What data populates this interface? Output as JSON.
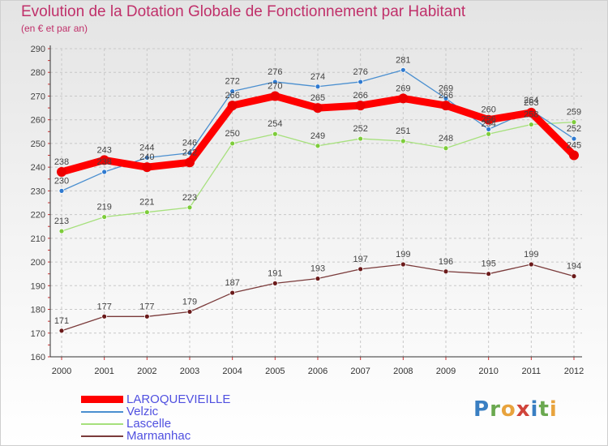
{
  "header": {
    "title": "Evolution de la Dotation Globale de Fonctionnement par Habitant",
    "subtitle": "(en € et par an)"
  },
  "brand": {
    "logo_letters": [
      "P",
      "r",
      "o",
      "x",
      "i",
      "t",
      "i"
    ],
    "logo_colors": [
      "#3a7fc2",
      "#6aa84f",
      "#e8a33d",
      "#d0443b",
      "#3a7fc2",
      "#6aa84f",
      "#e8a33d"
    ]
  },
  "chart_data": {
    "type": "line",
    "title": "Evolution de la Dotation Globale de Fonctionnement par Habitant",
    "subtitle": "(en € et par an)",
    "xlabel": "",
    "ylabel": "",
    "x": [
      "2000",
      "2001",
      "2002",
      "2003",
      "2004",
      "2005",
      "2006",
      "2007",
      "2008",
      "2009",
      "2010",
      "2011",
      "2012"
    ],
    "ylim": [
      160,
      290
    ],
    "yticks": [
      160,
      170,
      180,
      190,
      200,
      210,
      220,
      230,
      240,
      250,
      260,
      270,
      280,
      290
    ],
    "grid": true,
    "legend_position": "bottom-left",
    "series": [
      {
        "name": "LAROQUEVIEILLE",
        "color": "#ff0000",
        "dot": "#ee0000",
        "values": [
          238,
          243,
          240,
          242,
          266,
          270,
          265,
          266,
          269,
          266,
          260,
          263,
          245
        ]
      },
      {
        "name": "Velzic",
        "color": "#4a8fd0",
        "dot": "#2f7ad0",
        "values": [
          230,
          238,
          244,
          246,
          272,
          276,
          274,
          276,
          281,
          269,
          256,
          264,
          252
        ]
      },
      {
        "name": "Lascelle",
        "color": "#a6e07c",
        "dot": "#7dcc3a",
        "values": [
          213,
          219,
          221,
          223,
          250,
          254,
          249,
          252,
          251,
          248,
          254,
          258,
          259
        ]
      },
      {
        "name": "Marmanhac",
        "color": "#7a3a3a",
        "dot": "#6a1a1a",
        "values": [
          171,
          177,
          177,
          179,
          187,
          191,
          193,
          197,
          199,
          196,
          195,
          199,
          194
        ]
      }
    ]
  }
}
